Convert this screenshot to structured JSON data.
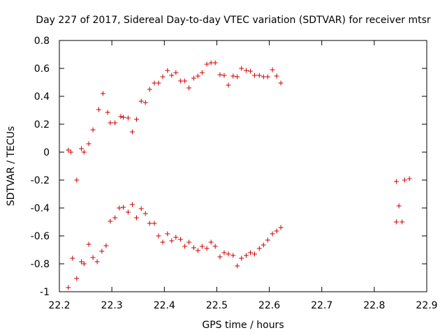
{
  "chart_data": {
    "type": "scatter",
    "title": "Day 227 of 2017, Sidereal Day-to-day VTEC variation (SDTVAR) for receiver mtsr",
    "xlabel": "GPS time / hours",
    "ylabel": "SDTVAR / TECUs",
    "xlim": [
      22.2,
      22.9
    ],
    "ylim": [
      -1,
      0.8
    ],
    "xticks": [
      "22.2",
      "22.3",
      "22.4",
      "22.5",
      "22.6",
      "22.7",
      "22.8",
      "22.9"
    ],
    "yticks": [
      "0.8",
      "0.6",
      "0.4",
      "0.2",
      "0",
      "-0.2",
      "-0.4",
      "-0.6",
      "-0.8",
      "-1"
    ],
    "marker": "+",
    "color": "#cc0000",
    "series": [
      {
        "name": "upper",
        "x": [
          22.217,
          22.222,
          22.233,
          22.242,
          22.247,
          22.256,
          22.264,
          22.275,
          22.283,
          22.292,
          22.297,
          22.306,
          22.317,
          22.322,
          22.331,
          22.339,
          22.347,
          22.356,
          22.364,
          22.372,
          22.381,
          22.389,
          22.397,
          22.406,
          22.414,
          22.422,
          22.431,
          22.439,
          22.447,
          22.456,
          22.464,
          22.472,
          22.481,
          22.489,
          22.497,
          22.506,
          22.514,
          22.522,
          22.531,
          22.539,
          22.547,
          22.556,
          22.564,
          22.572,
          22.581,
          22.589,
          22.597,
          22.606,
          22.614,
          22.622,
          22.842,
          22.858,
          22.867
        ],
        "y": [
          0.015,
          0.0,
          -0.2,
          0.025,
          0.0,
          0.06,
          0.16,
          0.305,
          0.42,
          0.285,
          0.21,
          0.21,
          0.255,
          0.25,
          0.245,
          0.145,
          0.235,
          0.365,
          0.355,
          0.45,
          0.495,
          0.495,
          0.54,
          0.585,
          0.55,
          0.57,
          0.51,
          0.51,
          0.46,
          0.53,
          0.545,
          0.57,
          0.63,
          0.64,
          0.64,
          0.555,
          0.55,
          0.48,
          0.545,
          0.54,
          0.6,
          0.585,
          0.58,
          0.55,
          0.55,
          0.54,
          0.54,
          0.59,
          0.545,
          0.495,
          -0.21,
          -0.2,
          -0.19
        ]
      },
      {
        "name": "lower",
        "x": [
          22.217,
          22.225,
          22.233,
          22.242,
          22.247,
          22.256,
          22.264,
          22.272,
          22.281,
          22.289,
          22.297,
          22.306,
          22.314,
          22.322,
          22.331,
          22.339,
          22.347,
          22.356,
          22.364,
          22.372,
          22.381,
          22.389,
          22.397,
          22.406,
          22.414,
          22.422,
          22.431,
          22.439,
          22.447,
          22.456,
          22.464,
          22.472,
          22.481,
          22.489,
          22.497,
          22.506,
          22.514,
          22.522,
          22.531,
          22.539,
          22.547,
          22.556,
          22.564,
          22.572,
          22.581,
          22.589,
          22.597,
          22.606,
          22.614,
          22.622,
          22.842,
          22.847,
          22.853
        ],
        "y": [
          -0.97,
          -0.76,
          -0.905,
          -0.785,
          -0.8,
          -0.66,
          -0.755,
          -0.785,
          -0.71,
          -0.67,
          -0.495,
          -0.47,
          -0.4,
          -0.395,
          -0.43,
          -0.375,
          -0.47,
          -0.405,
          -0.44,
          -0.51,
          -0.51,
          -0.6,
          -0.645,
          -0.585,
          -0.635,
          -0.61,
          -0.625,
          -0.675,
          -0.645,
          -0.685,
          -0.705,
          -0.675,
          -0.69,
          -0.645,
          -0.675,
          -0.75,
          -0.72,
          -0.73,
          -0.74,
          -0.815,
          -0.76,
          -0.74,
          -0.72,
          -0.73,
          -0.69,
          -0.665,
          -0.63,
          -0.585,
          -0.565,
          -0.54,
          -0.5,
          -0.385,
          -0.5
        ]
      }
    ]
  }
}
